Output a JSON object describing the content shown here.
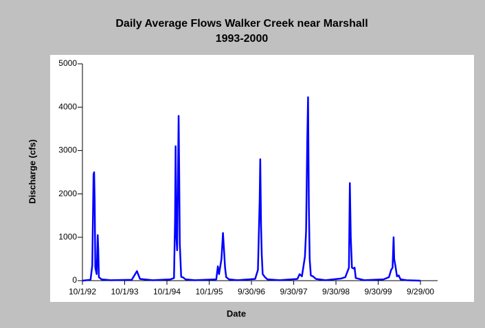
{
  "chart_data": {
    "type": "line",
    "title": "Daily Average Flows Walker Creek near Marshall",
    "subtitle": "1993-2000",
    "xlabel": "Date",
    "ylabel": "Discharge (cfs)",
    "color": "#0000ff",
    "x": [
      "10/1/92",
      "12/10/92",
      "12/25/92",
      "1/5/93",
      "1/10/93",
      "1/15/93",
      "1/20/93",
      "2/1/93",
      "2/10/93",
      "2/15/93",
      "2/20/93",
      "3/15/93",
      "6/1/93",
      "12/1/93",
      "1/15/94",
      "1/25/94",
      "2/10/94",
      "6/1/94",
      "11/1/94",
      "12/1/94",
      "12/10/94",
      "12/15/94",
      "12/20/94",
      "12/28/94",
      "1/10/95",
      "1/15/95",
      "1/20/95",
      "2/1/95",
      "2/20/95",
      "3/10/95",
      "6/1/95",
      "12/1/95",
      "12/15/95",
      "12/25/95",
      "1/15/96",
      "1/28/96",
      "2/5/96",
      "2/15/96",
      "2/25/96",
      "3/20/96",
      "6/1/96",
      "11/1/96",
      "11/25/96",
      "12/10/96",
      "12/15/96",
      "12/22/96",
      "12/28/96",
      "1/5/97",
      "1/25/97",
      "2/15/97",
      "6/1/97",
      "11/1/97",
      "11/20/97",
      "12/10/97",
      "1/5/98",
      "1/15/98",
      "1/25/98",
      "2/1/98",
      "2/8/98",
      "2/15/98",
      "2/25/98",
      "3/15/98",
      "4/10/98",
      "7/1/98",
      "11/15/98",
      "12/20/98",
      "1/20/99",
      "1/28/99",
      "2/5/99",
      "2/15/99",
      "2/28/99",
      "3/10/99",
      "3/20/99",
      "6/1/99",
      "11/15/99",
      "1/1/00",
      "1/20/00",
      "2/1/00",
      "2/10/00",
      "2/15/00",
      "2/25/00",
      "3/10/00",
      "3/25/00",
      "4/10/00",
      "6/1/00",
      "9/29/00"
    ],
    "values": [
      0,
      20,
      350,
      2450,
      2500,
      1800,
      300,
      150,
      1050,
      700,
      80,
      30,
      10,
      20,
      220,
      150,
      40,
      10,
      30,
      60,
      1400,
      3100,
      1100,
      700,
      3800,
      2450,
      850,
      90,
      70,
      30,
      10,
      30,
      330,
      150,
      500,
      1100,
      750,
      300,
      80,
      30,
      10,
      40,
      250,
      1850,
      2800,
      1250,
      600,
      150,
      80,
      30,
      10,
      40,
      150,
      100,
      550,
      1150,
      3200,
      4230,
      1700,
      500,
      120,
      100,
      40,
      10,
      50,
      80,
      300,
      2250,
      1000,
      300,
      280,
      300,
      60,
      10,
      30,
      80,
      250,
      300,
      1000,
      500,
      350,
      100,
      120,
      30,
      10,
      0
    ],
    "xlim": [
      "10/1/92",
      "2/24/01"
    ],
    "xticks": [
      "10/1/92",
      "10/1/93",
      "10/1/94",
      "10/1/95",
      "9/30/96",
      "9/30/97",
      "9/30/98",
      "9/30/99",
      "9/29/00"
    ],
    "ylim": [
      0,
      5000
    ],
    "yticks": [
      0,
      1000,
      2000,
      3000,
      4000,
      5000
    ]
  }
}
